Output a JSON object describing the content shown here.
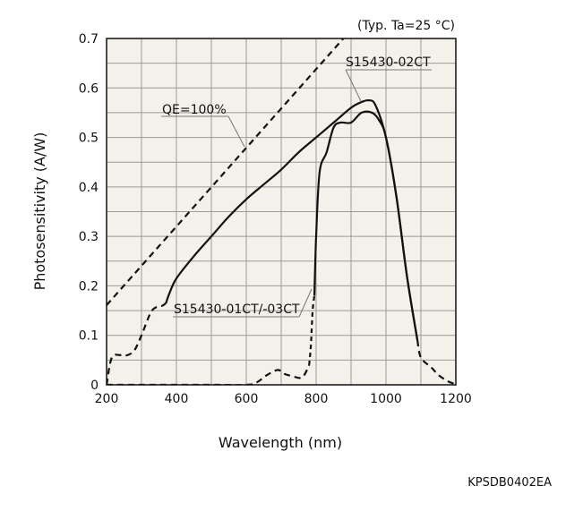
{
  "chart_data": {
    "type": "line",
    "condition": "(Typ. Ta=25 °C)",
    "xlabel": "Wavelength (nm)",
    "ylabel": "Photosensitivity (A/W)",
    "xlim": [
      200,
      1200
    ],
    "ylim": [
      0,
      0.7
    ],
    "xticks": [
      "200",
      "400",
      "600",
      "800",
      "1000",
      "1200"
    ],
    "yticks": [
      "0",
      "0.1",
      "0.2",
      "0.3",
      "0.4",
      "0.5",
      "0.6",
      "0.7"
    ],
    "grid": true,
    "plot_background": "#f4f1ea",
    "series": [
      {
        "name": "QE=100%",
        "style": "dashed",
        "x": [
          200,
          878
        ],
        "y": [
          0.161,
          0.7
        ]
      },
      {
        "name": "S15430-02CT",
        "style": "solid",
        "x": [
          370,
          380,
          400,
          450,
          500,
          550,
          600,
          650,
          700,
          750,
          800,
          850,
          900,
          925,
          950,
          970,
          1000,
          1030,
          1060,
          1090
        ],
        "y": [
          0.165,
          0.185,
          0.215,
          0.26,
          0.3,
          0.34,
          0.375,
          0.405,
          0.435,
          0.47,
          0.5,
          0.53,
          0.56,
          0.57,
          0.575,
          0.565,
          0.5,
          0.38,
          0.22,
          0.09
        ],
        "peak_label": "S15430-02CT"
      },
      {
        "name": "S15430-01CT/-03CT",
        "style": "mixed",
        "x": [
          200,
          215,
          240,
          260,
          280,
          300,
          330,
          360,
          370,
          780,
          785,
          790,
          795,
          800,
          810,
          830,
          850,
          870,
          900,
          930,
          960,
          980,
          1000,
          1030,
          1060,
          1090,
          1100,
          1130,
          1150,
          1175,
          1195
        ],
        "y": [
          0.0,
          0.055,
          0.06,
          0.06,
          0.07,
          0.1,
          0.15,
          0.16,
          0.165,
          0.04,
          0.08,
          0.15,
          0.18,
          0.3,
          0.43,
          0.47,
          0.52,
          0.53,
          0.53,
          0.55,
          0.55,
          0.535,
          0.5,
          0.38,
          0.22,
          0.09,
          0.055,
          0.035,
          0.02,
          0.008,
          0.002
        ],
        "low_wavelength_tail": {
          "x": [
            200,
            500,
            600,
            630,
            660,
            690,
            710,
            730,
            760,
            780
          ],
          "y": [
            0.0,
            0.0,
            0.0,
            0.005,
            0.02,
            0.03,
            0.022,
            0.018,
            0.015,
            0.04
          ]
        },
        "label": "S15430-01CT/-03CT"
      }
    ],
    "annotations": [
      "QE=100%",
      "S15430-02CT",
      "S15430-01CT/-03CT"
    ],
    "figure_code": "KPSDB0402EA"
  }
}
